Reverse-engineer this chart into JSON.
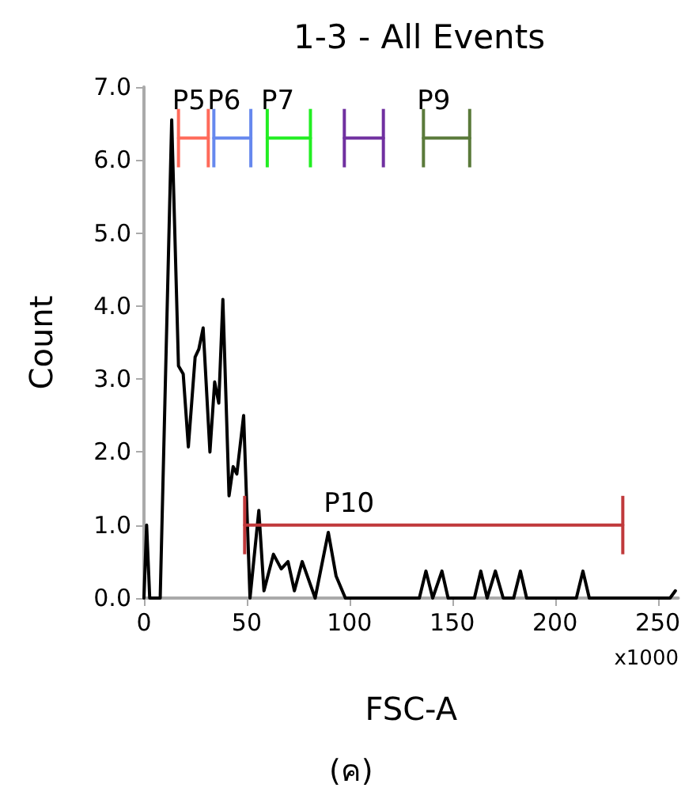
{
  "chart_data": {
    "type": "line",
    "title": "1-3 - All Events",
    "xlabel": "FSC-A",
    "ylabel": "Count",
    "annotations": [
      "x1000",
      "(ค)"
    ],
    "xlim": [
      0,
      260
    ],
    "xticks": [
      0,
      50,
      100,
      150,
      200,
      250
    ],
    "ylim": [
      0,
      7
    ],
    "yticks": [
      {
        "value": 0,
        "label": "0.0"
      },
      {
        "value": 1,
        "label": "1.0"
      },
      {
        "value": 2,
        "label": "2.0"
      },
      {
        "value": 3,
        "label": "3.0"
      },
      {
        "value": 4,
        "label": "4.0"
      },
      {
        "value": 5,
        "label": "5.0"
      },
      {
        "value": 6,
        "label": "6.0"
      },
      {
        "value": 7,
        "label": "7.0"
      }
    ],
    "grid": false,
    "legend": false,
    "marker": "none",
    "line_style": "solid",
    "series": [
      {
        "color": "#000000",
        "x": [
          0,
          1.3,
          2.8,
          7.9,
          13.5,
          16.8,
          19.1,
          21.6,
          24.9,
          26.7,
          28.8,
          32.1,
          34.4,
          36.4,
          38.4,
          41.4,
          43.4,
          45.2,
          48.5,
          51.6,
          55.9,
          58.4,
          63,
          66.8,
          70.1,
          73.2,
          77,
          83.3,
          89.7,
          93.5,
          98,
          134,
          137.2,
          140.5,
          145,
          148,
          160.8,
          163.9,
          167,
          171,
          174.8,
          179.9,
          183.2,
          186.2,
          210.4,
          213.6,
          216.7,
          256,
          258.6
        ],
        "values": [
          0,
          1.0,
          0,
          0,
          6.55,
          3.18,
          3.07,
          2.07,
          3.3,
          3.41,
          3.7,
          2.0,
          2.96,
          2.67,
          4.09,
          1.4,
          1.8,
          1.7,
          2.5,
          0,
          1.2,
          0.1,
          0.6,
          0.4,
          0.5,
          0.1,
          0.5,
          0,
          0.9,
          0.3,
          0,
          0,
          0.37,
          0,
          0.37,
          0,
          0,
          0.37,
          0,
          0.37,
          0,
          0,
          0.37,
          0,
          0,
          0.37,
          0,
          0,
          0.1
        ]
      },
      {
        "type": "line",
        "name": "P5",
        "color": "#ff6a5a",
        "x": [
          16.8,
          31.3
        ],
        "values": [
          6.3,
          6.3
        ],
        "errors": [
          0.4,
          0.4
        ]
      },
      {
        "type": "line",
        "name": "P6",
        "color": "#6688ee",
        "x": [
          34,
          52
        ],
        "values": [
          6.3,
          6.3
        ],
        "errors": [
          0.4,
          0.4
        ]
      },
      {
        "type": "line",
        "name": "P7",
        "color": "#22ee22",
        "x": [
          60,
          81
        ],
        "values": [
          6.3,
          6.3
        ],
        "errors": [
          0.4,
          0.4
        ]
      },
      {
        "type": "line",
        "color": "#7030a0",
        "x": [
          97.5,
          116.5
        ],
        "values": [
          6.3,
          6.3
        ],
        "errors": [
          0.4,
          0.4
        ]
      },
      {
        "type": "line",
        "name": "P9",
        "color": "#5a7a3a",
        "x": [
          136,
          158.5
        ],
        "values": [
          6.3,
          6.3
        ],
        "errors": [
          0.4,
          0.4
        ]
      },
      {
        "type": "line",
        "name": "P10",
        "color": "#c0393b",
        "x": [
          49,
          233
        ],
        "values": [
          1.0,
          1.0
        ],
        "errors": [
          0.4,
          0.4
        ]
      }
    ]
  }
}
